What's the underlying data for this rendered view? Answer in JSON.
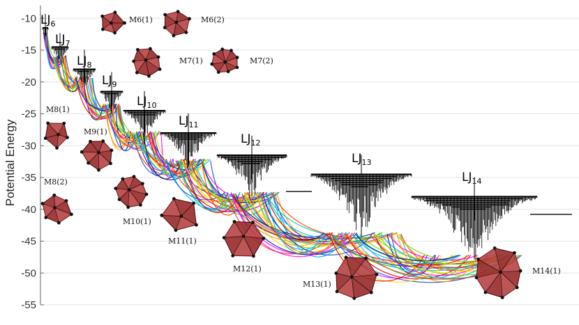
{
  "chart_data": {
    "type": "disconnectivity-graph",
    "title": "",
    "xlabel": "",
    "ylabel": "Potential Energy",
    "ylim": [
      -55,
      -8
    ],
    "yticks": [
      -10,
      -15,
      -20,
      -25,
      -30,
      -35,
      -40,
      -45,
      -50,
      -55
    ],
    "grid": true,
    "clusters": [
      {
        "base": "LJ",
        "sub": "6",
        "global_min": -12.71
      },
      {
        "base": "LJ",
        "sub": "7",
        "global_min": -16.51
      },
      {
        "base": "LJ",
        "sub": "8",
        "global_min": -19.82
      },
      {
        "base": "LJ",
        "sub": "9",
        "global_min": -24.11
      },
      {
        "base": "LJ",
        "sub": "10",
        "global_min": -28.42
      },
      {
        "base": "LJ",
        "sub": "11",
        "global_min": -32.77
      },
      {
        "base": "LJ",
        "sub": "12",
        "global_min": -37.97
      },
      {
        "base": "LJ",
        "sub": "13",
        "global_min": -44.33
      },
      {
        "base": "LJ",
        "sub": "14",
        "global_min": -47.85
      }
    ],
    "minima_labels": [
      "M6(1)",
      "M6(2)",
      "M7(1)",
      "M7(2)",
      "M8(1)",
      "M8(2)",
      "M9(1)",
      "M10(1)",
      "M11(1)",
      "M12(1)",
      "M13(1)",
      "M14(1)"
    ]
  },
  "colors": {
    "tree": "#000000",
    "polyhedron": "#b23a3a",
    "polyhedron_dark": "#6e1414",
    "series_palette": [
      "#ff00ff",
      "#0a1a8c",
      "#1e4fd8",
      "#00b4ff",
      "#00c8a0",
      "#7ad400",
      "#f0e000",
      "#ff9a00",
      "#ff3c00",
      "#e60000"
    ]
  }
}
